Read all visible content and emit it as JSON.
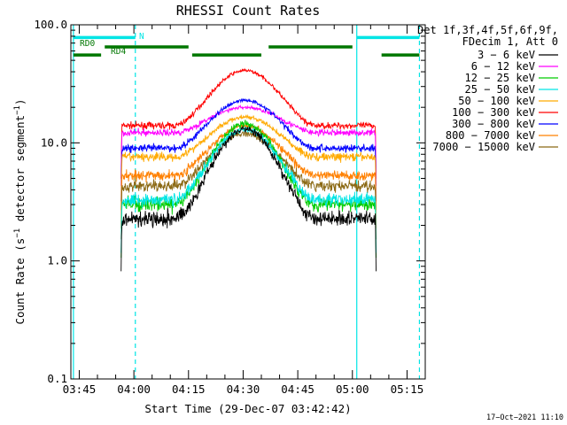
{
  "chart_data": {
    "type": "line",
    "title": "RHESSI Count Rates",
    "xlabel": "Start Time (29-Dec-07 03:42:42)",
    "ylabel_main": "Count Rate (s",
    "ylabel_exp": "−1",
    "ylabel_tail": " detector segment",
    "ylabel_exp2": "−1",
    "ylabel_close": ")",
    "y_scale": "log",
    "ylim": [
      0.1,
      100.0
    ],
    "y_ticks": [
      {
        "value": 0.1,
        "label": "0.1"
      },
      {
        "value": 1.0,
        "label": "1.0"
      },
      {
        "value": 10.0,
        "label": "10.0"
      },
      {
        "value": 100.0,
        "label": "100.0"
      }
    ],
    "x_unit": "minutes after 03:40 UT, 29-Dec-07",
    "xlim": [
      2.7,
      100.0
    ],
    "x_ticks": [
      {
        "value": 5,
        "label": "03:45"
      },
      {
        "value": 20,
        "label": "04:00"
      },
      {
        "value": 35,
        "label": "04:15"
      },
      {
        "value": 50,
        "label": "04:30"
      },
      {
        "value": 65,
        "label": "04:45"
      },
      {
        "value": 80,
        "label": "05:00"
      },
      {
        "value": 95,
        "label": "05:15"
      }
    ],
    "data_window": [
      16.5,
      86.5
    ],
    "rise_start": 31.5,
    "fall_end": 69.5,
    "legend": {
      "header_line1": "Det 1f,3f,4f,5f,6f,9f,",
      "header_line2": "FDecim 1, Att 0",
      "position": "top-right"
    },
    "series": [
      {
        "name": "3 − 6 keV",
        "color": "#000000",
        "base": 2.3,
        "peak": 13.0
      },
      {
        "name": "6 − 12 keV",
        "color": "#ff00ff",
        "base": 12.2,
        "peak": 20.0
      },
      {
        "name": "12 − 25 keV",
        "color": "#00cc00",
        "base": 3.0,
        "peak": 14.5
      },
      {
        "name": "25 − 50 keV",
        "color": "#00e5e5",
        "base": 3.3,
        "peak": 13.0
      },
      {
        "name": "50 − 100 keV",
        "color": "#ffaa00",
        "base": 7.6,
        "peak": 16.5
      },
      {
        "name": "100 − 300 keV",
        "color": "#ff0000",
        "base": 14.0,
        "peak": 41.0
      },
      {
        "name": "300 − 800 keV",
        "color": "#0000ff",
        "base": 9.0,
        "peak": 23.0
      },
      {
        "name": "800 − 7000 keV",
        "color": "#ff8000",
        "base": 5.3,
        "peak": 14.0
      },
      {
        "name": "7000 − 15000 keV",
        "color": "#8b6914",
        "base": 4.3,
        "peak": 12.0
      }
    ],
    "draw_order": [
      5,
      1,
      6,
      4,
      7,
      8,
      2,
      3,
      0
    ],
    "vertical_markers": [
      {
        "x": 3.4,
        "color": "#00e5e5",
        "style": "solid"
      },
      {
        "x": 20.4,
        "color": "#00e5e5",
        "style": "dashed"
      },
      {
        "x": 81.2,
        "color": "#00e5e5",
        "style": "solid"
      },
      {
        "x": 98.4,
        "color": "#00e5e5",
        "style": "dashed"
      }
    ],
    "status_bars": [
      {
        "label": "N",
        "color": "#00e5e5",
        "level": 78.0,
        "segments": [
          [
            3.4,
            20.4
          ],
          [
            81.2,
            98.4
          ]
        ]
      },
      {
        "label": "RD0",
        "color": "#007700",
        "level": 65.0,
        "segments": [
          [
            12.0,
            35.0
          ],
          [
            57.0,
            80.0
          ]
        ]
      },
      {
        "label": "RD4",
        "color": "#007700",
        "level": 55.5,
        "segments": [
          [
            3.4,
            11.0
          ],
          [
            36.0,
            55.0
          ],
          [
            88.0,
            98.4
          ]
        ]
      }
    ]
  },
  "footer_timestamp": "17−Oct−2021 11:10"
}
